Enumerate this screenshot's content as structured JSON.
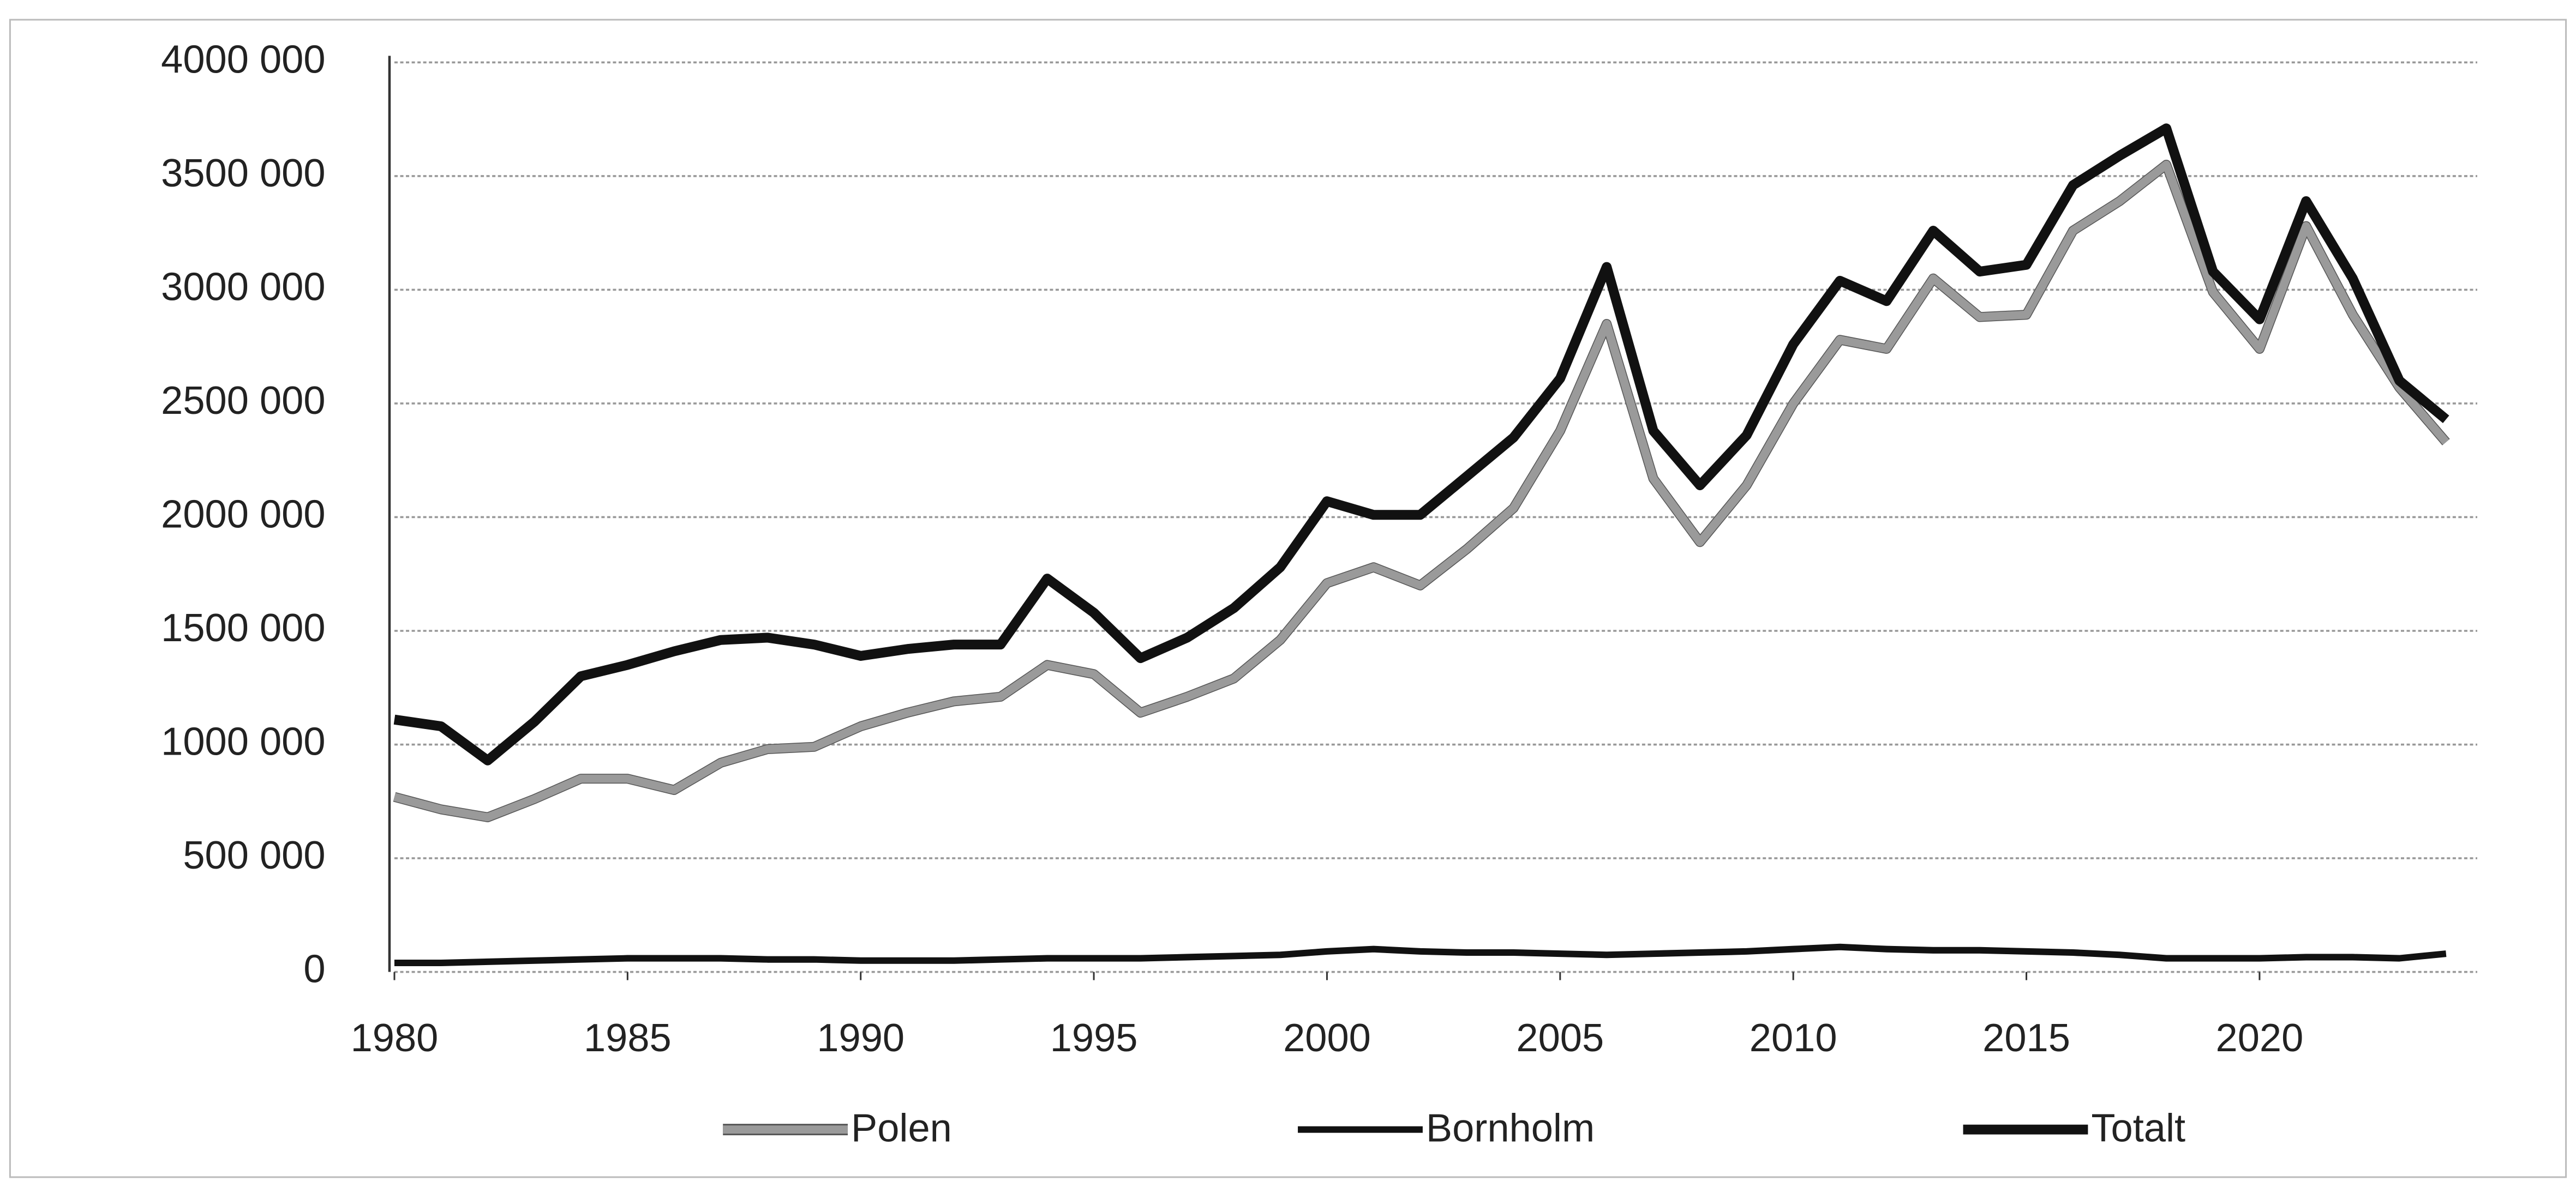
{
  "chart_data": {
    "type": "line",
    "x": [
      1980,
      1981,
      1982,
      1983,
      1984,
      1985,
      1986,
      1987,
      1988,
      1989,
      1990,
      1991,
      1992,
      1993,
      1994,
      1995,
      1996,
      1997,
      1998,
      1999,
      2000,
      2001,
      2002,
      2003,
      2004,
      2005,
      2006,
      2007,
      2008,
      2009,
      2010,
      2011,
      2012,
      2013,
      2014,
      2015,
      2016,
      2017,
      2018,
      2019,
      2020,
      2021,
      2022,
      2023,
      2024
    ],
    "series": [
      {
        "name": "Polen",
        "color": "#9a9a9a",
        "values": [
          770000,
          715000,
          680000,
          760000,
          850000,
          850000,
          800000,
          920000,
          980000,
          990000,
          1080000,
          1140000,
          1190000,
          1210000,
          1350000,
          1310000,
          1140000,
          1210000,
          1290000,
          1460000,
          1710000,
          1780000,
          1700000,
          1860000,
          2040000,
          2380000,
          2850000,
          2170000,
          1890000,
          2140000,
          2500000,
          2780000,
          2740000,
          3050000,
          2880000,
          2890000,
          3260000,
          3390000,
          3550000,
          2990000,
          2740000,
          3280000,
          2890000,
          2570000,
          2330000
        ]
      },
      {
        "name": "Bornholm",
        "color": "#111111",
        "values": [
          40000,
          40000,
          45000,
          50000,
          55000,
          60000,
          60000,
          60000,
          55000,
          55000,
          50000,
          50000,
          50000,
          55000,
          60000,
          60000,
          60000,
          65000,
          70000,
          75000,
          90000,
          100000,
          90000,
          85000,
          85000,
          80000,
          75000,
          80000,
          85000,
          90000,
          100000,
          110000,
          100000,
          95000,
          95000,
          90000,
          85000,
          75000,
          60000,
          60000,
          60000,
          65000,
          65000,
          60000,
          80000
        ]
      },
      {
        "name": "Totalt",
        "color": "#111111",
        "values": [
          1110000,
          1080000,
          930000,
          1100000,
          1300000,
          1350000,
          1410000,
          1460000,
          1470000,
          1440000,
          1390000,
          1420000,
          1440000,
          1440000,
          1730000,
          1580000,
          1380000,
          1470000,
          1600000,
          1780000,
          2070000,
          2010000,
          2010000,
          2180000,
          2350000,
          2610000,
          3100000,
          2380000,
          2140000,
          2360000,
          2760000,
          3040000,
          2950000,
          3260000,
          3080000,
          3110000,
          3460000,
          3590000,
          3710000,
          3080000,
          2870000,
          3390000,
          3050000,
          2600000,
          2430000
        ]
      }
    ],
    "xlim": [
      1980,
      2024
    ],
    "xticks": [
      1980,
      1985,
      1990,
      1995,
      2000,
      2005,
      2010,
      2015,
      2020
    ],
    "ylim": [
      0,
      4000000
    ],
    "yticks": [
      0,
      {
        "value": 500000,
        "label": "500 000"
      },
      {
        "value": 1000000,
        "label": "1000 000"
      },
      {
        "value": 1500000,
        "label": "1500 000"
      },
      {
        "value": 2000000,
        "label": "2000 000"
      },
      {
        "value": 2500000,
        "label": "2500 000"
      },
      {
        "value": 3000000,
        "label": "3000 000"
      },
      {
        "value": 3500000,
        "label": "3500 000"
      },
      {
        "value": 4000000,
        "label": "4000 000"
      }
    ],
    "grid": true,
    "legend": "bottom"
  }
}
